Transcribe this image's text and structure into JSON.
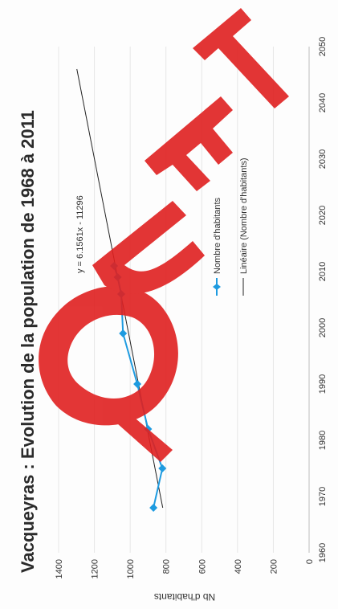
{
  "chart_data": {
    "type": "line",
    "orientation": "rotated 90° counter-clockwise",
    "title": "Vacqueyras : Evolution de la population de 1968 à 2011",
    "xlabel": "",
    "ylabel": "Nb d'habitants",
    "xlim": [
      1960,
      2050
    ],
    "ylim": [
      0,
      1400
    ],
    "x_ticks": [
      1960,
      1970,
      1980,
      1990,
      2000,
      2010,
      2020,
      2030,
      2040,
      2050
    ],
    "y_ticks": [
      0,
      200,
      400,
      600,
      800,
      1000,
      1200,
      1400
    ],
    "grid": "horizontal gridlines",
    "legend_position": "right",
    "series": [
      {
        "name": "Nombre d'habitants",
        "color": "#1e9be0",
        "marker": "diamond",
        "x": [
          1968,
          1975,
          1982,
          1990,
          1999,
          2006,
          2009,
          2011
        ],
        "y": [
          870,
          820,
          900,
          960,
          1040,
          1050,
          1070,
          1090
        ]
      },
      {
        "name": "Linéaire (Nombre d'habitants)",
        "color": "#222222",
        "type": "trendline",
        "x": [
          1968,
          2046
        ],
        "y": [
          818,
          1298
        ]
      }
    ],
    "annotations": [
      {
        "text": "y = 6.1561x - 11296"
      }
    ],
    "watermark": "QUETEL",
    "watermark_color": "#e02020"
  }
}
